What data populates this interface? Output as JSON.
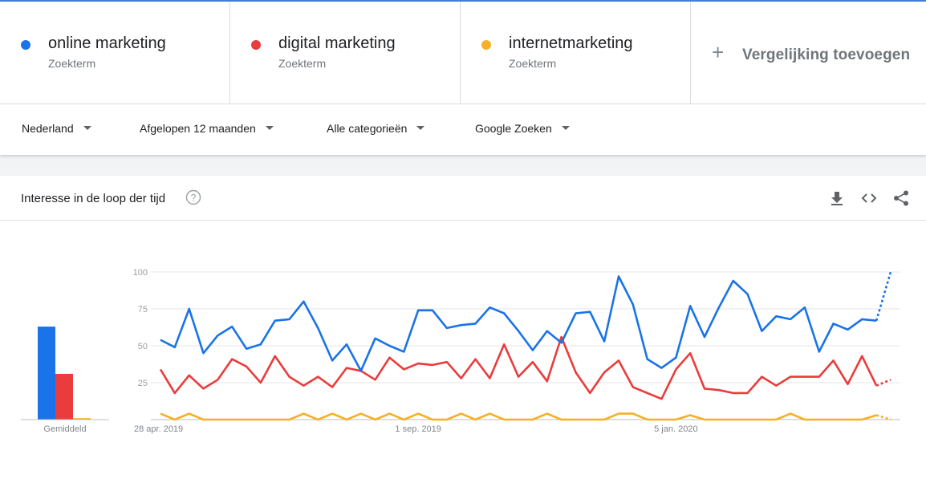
{
  "terms": [
    {
      "name": "online marketing",
      "sub": "Zoekterm",
      "color": "#1a73e8"
    },
    {
      "name": "digital marketing",
      "sub": "Zoekterm",
      "color": "#ea3c3c"
    },
    {
      "name": "internetmarketing",
      "sub": "Zoekterm",
      "color": "#f5b025"
    }
  ],
  "add_compare": {
    "plus": "+",
    "label": "Vergelijking toevoegen"
  },
  "filters": {
    "region": "Nederland",
    "time": "Afgelopen 12 maanden",
    "category": "Alle categorieën",
    "source": "Google Zoeken"
  },
  "card": {
    "title": "Interesse in de loop der tijd",
    "icons": [
      "help-icon",
      "download-icon",
      "embed-code-icon",
      "share-icon"
    ]
  },
  "chart_data": {
    "type": "line",
    "title": "Interesse in de loop der tijd",
    "ylim": [
      0,
      100
    ],
    "yticks": [
      25,
      50,
      75,
      100
    ],
    "grid": true,
    "x_tick_labels": [
      {
        "index": 0,
        "label": "28 apr. 2019"
      },
      {
        "index": 18,
        "label": "1 sep. 2019"
      },
      {
        "index": 36,
        "label": "5 jan. 2020"
      }
    ],
    "last_point_partial": true,
    "averages_label": "Gemiddeld",
    "averages": [
      63,
      31,
      1
    ],
    "series": [
      {
        "name": "online marketing",
        "color": "#1a73e8",
        "values": [
          54,
          49,
          75,
          45,
          57,
          63,
          48,
          51,
          67,
          68,
          80,
          62,
          40,
          51,
          33,
          55,
          50,
          46,
          74,
          74,
          62,
          64,
          65,
          76,
          72,
          60,
          47,
          60,
          52,
          72,
          73,
          53,
          97,
          78,
          41,
          35,
          42,
          77,
          56,
          76,
          94,
          85,
          60,
          70,
          68,
          76,
          46,
          65,
          61,
          68,
          67,
          100
        ]
      },
      {
        "name": "digital marketing",
        "color": "#ea3c3c",
        "values": [
          34,
          18,
          30,
          21,
          27,
          41,
          36,
          25,
          43,
          29,
          23,
          29,
          22,
          35,
          33,
          27,
          42,
          34,
          38,
          37,
          39,
          28,
          41,
          28,
          51,
          29,
          39,
          26,
          56,
          32,
          18,
          32,
          40,
          22,
          18,
          14,
          34,
          45,
          21,
          20,
          18,
          18,
          29,
          23,
          29,
          29,
          29,
          40,
          24,
          43,
          23,
          27
        ]
      },
      {
        "name": "internetmarketing",
        "color": "#f5b025",
        "values": [
          4,
          0,
          4,
          0,
          0,
          0,
          0,
          0,
          0,
          0,
          4,
          0,
          4,
          0,
          4,
          0,
          4,
          0,
          4,
          0,
          0,
          4,
          0,
          4,
          0,
          0,
          0,
          4,
          0,
          0,
          0,
          0,
          4,
          4,
          0,
          0,
          0,
          3,
          0,
          0,
          0,
          0,
          0,
          0,
          4,
          0,
          0,
          0,
          0,
          0,
          3,
          0
        ]
      }
    ]
  }
}
